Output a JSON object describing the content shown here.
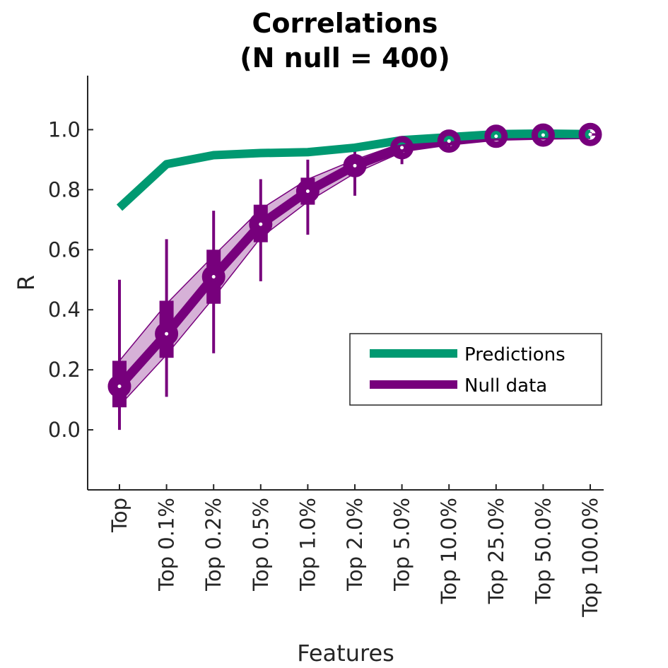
{
  "chart_data": {
    "type": "line",
    "title": [
      "Correlations",
      "(N null = 400)"
    ],
    "xlabel": "Features",
    "ylabel": "R",
    "categories": [
      "Top",
      "Top 0.1%",
      "Top 0.2%",
      "Top 0.5%",
      "Top 1.0%",
      "Top 2.0%",
      "Top 5.0%",
      "Top 10.0%",
      "Top 25.0%",
      "Top 50.0%",
      "Top 100.0%"
    ],
    "ylim": [
      -0.2,
      1.18
    ],
    "yticks": [
      "0.0",
      "0.2",
      "0.4",
      "0.6",
      "0.8",
      "1.0"
    ],
    "grid": false,
    "legend_position": "lower-right",
    "colors": {
      "predictions": "#009971",
      "null": "#77007c",
      "band": "#d6b1d7"
    },
    "series": [
      {
        "name": "Predictions",
        "values": [
          0.74,
          0.885,
          0.915,
          0.922,
          0.925,
          0.94,
          0.965,
          0.975,
          0.985,
          0.987,
          0.985
        ]
      },
      {
        "name": "Null data",
        "values": [
          0.145,
          0.32,
          0.51,
          0.685,
          0.795,
          0.88,
          0.94,
          0.962,
          0.978,
          0.982,
          0.984
        ],
        "box_low": [
          0.075,
          0.24,
          0.42,
          0.625,
          0.75,
          0.86,
          0.925,
          0.955,
          0.972,
          0.98,
          0.98
        ],
        "box_high": [
          0.23,
          0.43,
          0.6,
          0.75,
          0.84,
          0.9,
          0.955,
          0.97,
          0.984,
          0.986,
          0.988
        ],
        "whisker_low": [
          0.0,
          0.11,
          0.255,
          0.495,
          0.65,
          0.78,
          0.885,
          0.94,
          0.965,
          0.975,
          0.978
        ],
        "whisker_high": [
          0.5,
          0.635,
          0.73,
          0.835,
          0.9,
          0.935,
          0.965,
          0.975,
          0.99,
          0.992,
          0.992
        ],
        "band_low": [
          0.08,
          0.25,
          0.44,
          0.64,
          0.76,
          0.855,
          0.925,
          0.955,
          0.972,
          0.98,
          0.98
        ],
        "band_high": [
          0.23,
          0.42,
          0.58,
          0.735,
          0.835,
          0.9,
          0.955,
          0.968,
          0.983,
          0.986,
          0.988
        ]
      }
    ]
  }
}
